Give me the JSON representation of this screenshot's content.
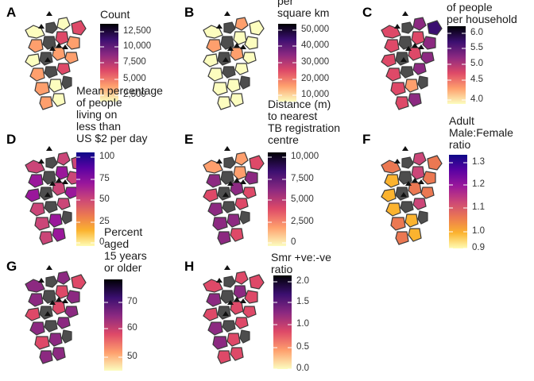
{
  "panels": [
    {
      "letter": "A",
      "legend_title": "Count",
      "ticks": [
        "12,500",
        "10,000",
        "7,500",
        "5,000",
        "2,500"
      ],
      "colormap": [
        "#000004",
        "#3b0f70",
        "#8c2981",
        "#de4968",
        "#fe9f6d",
        "#fcfdbf"
      ]
    },
    {
      "letter": "B",
      "legend_title": "per\nsquare km",
      "ticks": [
        "50,000",
        "40,000",
        "30,000",
        "20,000",
        "10,000"
      ],
      "colormap": [
        "#000004",
        "#3b0f70",
        "#8c2981",
        "#de4968",
        "#fe9f6d",
        "#fcfdbf"
      ]
    },
    {
      "letter": "C",
      "legend_title": "of people\nper household",
      "ticks": [
        "6.0",
        "5.5",
        "5.0",
        "4.5",
        "4.0"
      ],
      "colormap": [
        "#000004",
        "#3b0f70",
        "#8c2981",
        "#de4968",
        "#fe9f6d",
        "#fcfdbf"
      ]
    },
    {
      "letter": "D",
      "legend_title": "Mean percentage\nof people\nliving on\nless than\nUS $2 per day",
      "ticks": [
        "100",
        "75",
        "50",
        "25",
        "0"
      ],
      "colormap": [
        "#0d0887",
        "#5b02a3",
        "#9a179b",
        "#cb4678",
        "#eb7852",
        "#fbb32f",
        "#fffcb4"
      ]
    },
    {
      "letter": "E",
      "legend_title": "Distance (m)\nto nearest\nTB registration\ncentre",
      "ticks": [
        "10,000",
        "7,500",
        "5,000",
        "2,500",
        "0"
      ],
      "colormap": [
        "#000004",
        "#3b0f70",
        "#8c2981",
        "#de4968",
        "#fe9f6d",
        "#fcfdbf"
      ]
    },
    {
      "letter": "F",
      "legend_title": "Adult\nMale:Female\nratio",
      "ticks": [
        "1.3",
        "1.2",
        "1.1",
        "1.0",
        "0.9"
      ],
      "colormap": [
        "#0d0887",
        "#5b02a3",
        "#9a179b",
        "#cb4678",
        "#eb7852",
        "#fbb32f",
        "#fffcb4"
      ]
    },
    {
      "letter": "G",
      "legend_title": "Percent\naged\n15 years\nor older",
      "ticks": [
        "70",
        "60",
        "50"
      ],
      "colormap": [
        "#000004",
        "#3b0f70",
        "#8c2981",
        "#de4968",
        "#fe9f6d",
        "#fcfdbf"
      ]
    },
    {
      "letter": "H",
      "legend_title": "Smr +ve:-ve\nratio",
      "ticks": [
        "2.0",
        "1.5",
        "1.0",
        "0.5",
        "0.0"
      ],
      "colormap": [
        "#000004",
        "#3b0f70",
        "#8c2981",
        "#de4968",
        "#fe9f6d",
        "#fcfdbf"
      ]
    }
  ]
}
